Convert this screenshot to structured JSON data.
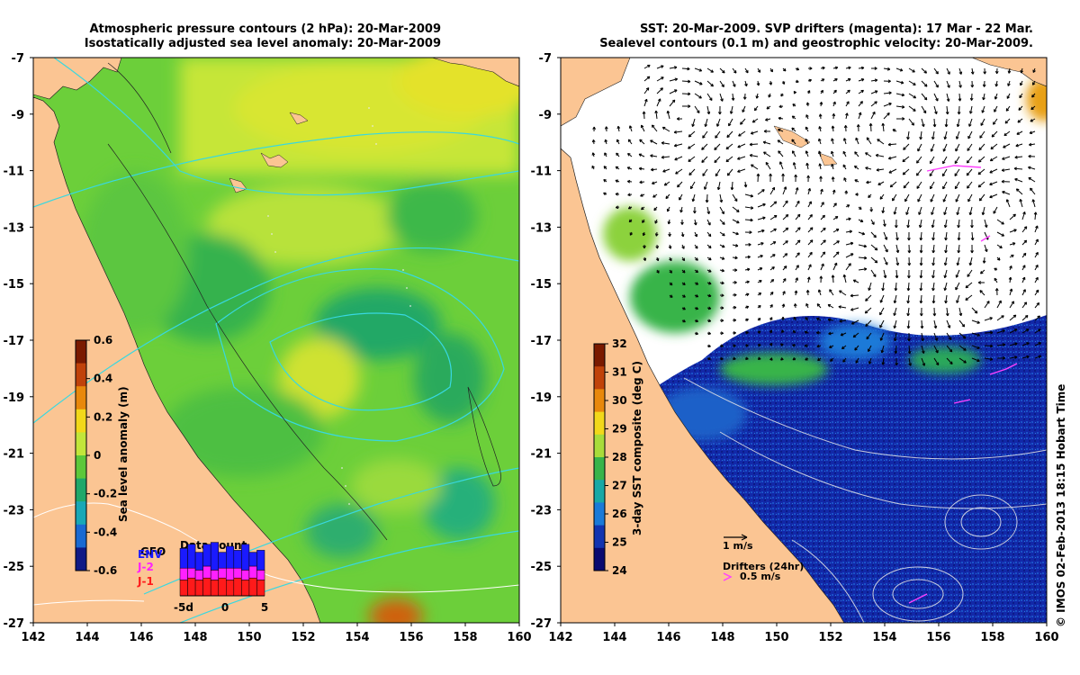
{
  "left_panel": {
    "title_line1": "Atmospheric pressure contours (2 hPa): 20-Mar-2009",
    "title_line2": "Isostatically adjusted sea level anomaly: 20-Mar-2009",
    "colorbar": {
      "label": "Sea level anomaly (m)",
      "ticks": [
        "0.6",
        "0.4",
        "0.2",
        "0",
        "-0.2",
        "-0.4",
        "-0.6"
      ],
      "values": [
        0.6,
        0.4,
        0.2,
        0,
        -0.2,
        -0.4,
        -0.6
      ],
      "colors": [
        "#7a1a00",
        "#c0420a",
        "#e8880c",
        "#f2d81a",
        "#c2e63a",
        "#5cc83a",
        "#1fa86a",
        "#18a8b6",
        "#1a6ad2",
        "#101a86"
      ]
    },
    "data_count": {
      "title": "Data count",
      "satellites": [
        {
          "name": "ENV",
          "color": "#1a1aff"
        },
        {
          "name": "J-2",
          "color": "#ff20ff"
        },
        {
          "name": "J-1",
          "color": "#ff1a1a"
        }
      ],
      "extra_label": "GFO",
      "xticks": [
        "-5d",
        "0",
        "5"
      ],
      "red": [
        8,
        9,
        8,
        9,
        8,
        9,
        8,
        9,
        8,
        9,
        8
      ],
      "magenta": [
        6,
        5,
        5,
        6,
        5,
        5,
        6,
        5,
        5,
        6,
        5
      ],
      "blue": [
        10,
        12,
        9,
        11,
        14,
        8,
        11,
        9,
        13,
        7,
        10
      ]
    }
  },
  "right_panel": {
    "title_line1": "SST: 20-Mar-2009. SVP drifters (magenta): 17 Mar - 22 Mar.",
    "title_line2": "Sealevel contours (0.1 m) and geostrophic velocity: 20-Mar-2009.",
    "colorbar": {
      "label": "3-day SST composite (deg C)",
      "ticks": [
        "32",
        "31",
        "30",
        "29",
        "28",
        "27",
        "26",
        "25",
        "24"
      ],
      "values": [
        32,
        31,
        30,
        29,
        28,
        27,
        26,
        25,
        24
      ],
      "colors": [
        "#7a1a00",
        "#c0420a",
        "#e8880c",
        "#f2d81a",
        "#a8dc3a",
        "#38b44a",
        "#18a8a6",
        "#1a7ad8",
        "#1234b0",
        "#0a0a70"
      ]
    },
    "velocity_scale": "1 m/s",
    "drifters_label": "Drifters (24hr)",
    "drifter_speed": "0.5 m/s"
  },
  "axes": {
    "lon_ticks": [
      "142",
      "144",
      "146",
      "148",
      "150",
      "152",
      "154",
      "156",
      "158",
      "160"
    ],
    "lon_values": [
      142,
      144,
      146,
      148,
      150,
      152,
      154,
      156,
      158,
      160
    ],
    "lat_ticks": [
      "-7",
      "-9",
      "-11",
      "-13",
      "-15",
      "-17",
      "-19",
      "-21",
      "-23",
      "-25",
      "-27"
    ],
    "lat_values": [
      -7,
      -9,
      -11,
      -13,
      -15,
      -17,
      -19,
      -21,
      -23,
      -25,
      -27
    ],
    "lon_range": [
      142,
      160
    ],
    "lat_range": [
      -27,
      -7
    ]
  },
  "colors": {
    "land": "#fbc593",
    "ocean_sla_base": "#6ccf3a",
    "pressure_contour": "#38d8e0",
    "sst_contour": "#e8e8e8",
    "drifter": "#ff40ff"
  },
  "credit": "© IMOS 02-Feb-2013 18:15 Hobart Time"
}
